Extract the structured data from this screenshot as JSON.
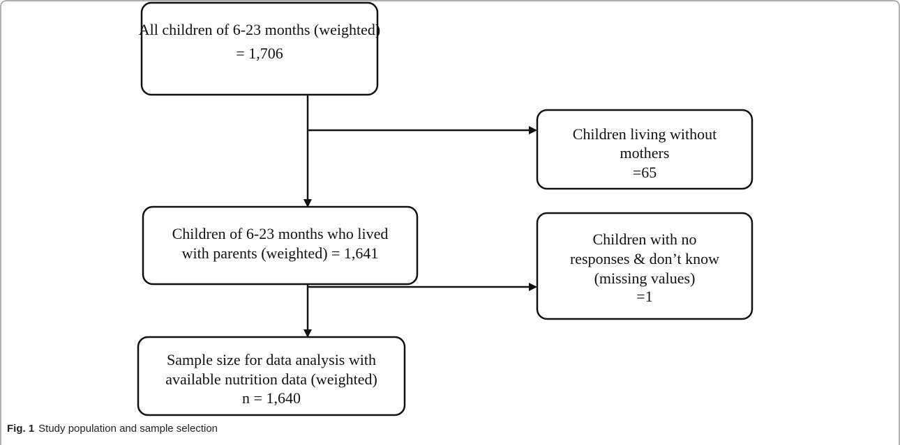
{
  "nodes": [
    {
      "lines": [
        "All children of 6-23 months (weighted)",
        "= 1,706"
      ]
    },
    {
      "lines": [
        "Children living without",
        "mothers",
        "=65"
      ]
    },
    {
      "lines": [
        "Children of 6-23 months who lived",
        "with parents (weighted) = 1,641"
      ]
    },
    {
      "lines": [
        "Children with no",
        "responses & don’t know",
        "(missing values)",
        "=1"
      ]
    },
    {
      "lines": [
        "Sample size for data analysis with",
        "available nutrition data (weighted)",
        "n = 1,640"
      ]
    }
  ],
  "caption": {
    "label": "Fig. 1",
    "text": "Study population and sample selection"
  }
}
